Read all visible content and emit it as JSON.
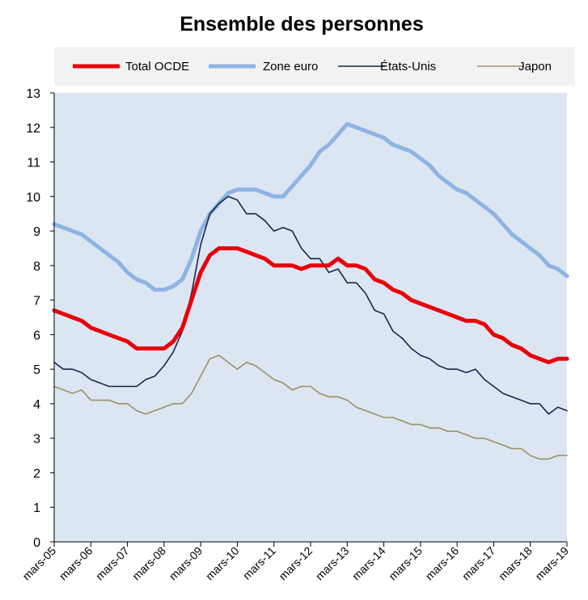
{
  "chart_data": {
    "type": "line",
    "title": "Ensemble des personnes",
    "xlabel": "",
    "ylabel": "",
    "ylim": [
      0,
      13
    ],
    "yticks": [
      "0",
      "1",
      "2",
      "3",
      "4",
      "5",
      "6",
      "7",
      "8",
      "9",
      "10",
      "11",
      "12",
      "13"
    ],
    "x_tick_labels": [
      "mars-05",
      "mars-06",
      "mars-07",
      "mars-08",
      "mars-09",
      "mars-10",
      "mars-11",
      "mars-12",
      "mars-13",
      "mars-14",
      "mars-15",
      "mars-16",
      "mars-17",
      "mars-18",
      "mars-19"
    ],
    "x_start": "2005-03",
    "x_end": "2019-03",
    "grid": false,
    "legend_position": "top",
    "colors": {
      "plot_background": "#dce6f2",
      "legend_background": "#f2f2f2",
      "axis": "#000000"
    },
    "series": [
      {
        "name": "Total OCDE",
        "color": "#e8000b",
        "width": 5,
        "points": [
          [
            "2005-03",
            6.7
          ],
          [
            "2005-06",
            6.6
          ],
          [
            "2005-09",
            6.5
          ],
          [
            "2005-12",
            6.4
          ],
          [
            "2006-03",
            6.2
          ],
          [
            "2006-06",
            6.1
          ],
          [
            "2006-09",
            6.0
          ],
          [
            "2006-12",
            5.9
          ],
          [
            "2007-03",
            5.8
          ],
          [
            "2007-06",
            5.6
          ],
          [
            "2007-09",
            5.6
          ],
          [
            "2007-12",
            5.6
          ],
          [
            "2008-03",
            5.6
          ],
          [
            "2008-06",
            5.8
          ],
          [
            "2008-09",
            6.2
          ],
          [
            "2008-12",
            7.0
          ],
          [
            "2009-03",
            7.8
          ],
          [
            "2009-06",
            8.3
          ],
          [
            "2009-09",
            8.5
          ],
          [
            "2009-12",
            8.5
          ],
          [
            "2010-03",
            8.5
          ],
          [
            "2010-06",
            8.4
          ],
          [
            "2010-09",
            8.3
          ],
          [
            "2010-12",
            8.2
          ],
          [
            "2011-03",
            8.0
          ],
          [
            "2011-06",
            8.0
          ],
          [
            "2011-09",
            8.0
          ],
          [
            "2011-12",
            7.9
          ],
          [
            "2012-03",
            8.0
          ],
          [
            "2012-06",
            8.0
          ],
          [
            "2012-09",
            8.0
          ],
          [
            "2012-12",
            8.2
          ],
          [
            "2013-03",
            8.0
          ],
          [
            "2013-06",
            8.0
          ],
          [
            "2013-09",
            7.9
          ],
          [
            "2013-12",
            7.6
          ],
          [
            "2014-03",
            7.5
          ],
          [
            "2014-06",
            7.3
          ],
          [
            "2014-09",
            7.2
          ],
          [
            "2014-12",
            7.0
          ],
          [
            "2015-03",
            6.9
          ],
          [
            "2015-06",
            6.8
          ],
          [
            "2015-09",
            6.7
          ],
          [
            "2015-12",
            6.6
          ],
          [
            "2016-03",
            6.5
          ],
          [
            "2016-06",
            6.4
          ],
          [
            "2016-09",
            6.4
          ],
          [
            "2016-12",
            6.3
          ],
          [
            "2017-03",
            6.0
          ],
          [
            "2017-06",
            5.9
          ],
          [
            "2017-09",
            5.7
          ],
          [
            "2017-12",
            5.6
          ],
          [
            "2018-03",
            5.4
          ],
          [
            "2018-06",
            5.3
          ],
          [
            "2018-09",
            5.2
          ],
          [
            "2018-12",
            5.3
          ],
          [
            "2019-03",
            5.3
          ]
        ]
      },
      {
        "name": "Zone euro",
        "color": "#8eb4e3",
        "width": 5,
        "points": [
          [
            "2005-03",
            9.2
          ],
          [
            "2005-06",
            9.1
          ],
          [
            "2005-09",
            9.0
          ],
          [
            "2005-12",
            8.9
          ],
          [
            "2006-03",
            8.7
          ],
          [
            "2006-06",
            8.5
          ],
          [
            "2006-09",
            8.3
          ],
          [
            "2006-12",
            8.1
          ],
          [
            "2007-03",
            7.8
          ],
          [
            "2007-06",
            7.6
          ],
          [
            "2007-09",
            7.5
          ],
          [
            "2007-12",
            7.3
          ],
          [
            "2008-03",
            7.3
          ],
          [
            "2008-06",
            7.4
          ],
          [
            "2008-09",
            7.6
          ],
          [
            "2008-12",
            8.2
          ],
          [
            "2009-03",
            9.0
          ],
          [
            "2009-06",
            9.5
          ],
          [
            "2009-09",
            9.8
          ],
          [
            "2009-12",
            10.1
          ],
          [
            "2010-03",
            10.2
          ],
          [
            "2010-06",
            10.2
          ],
          [
            "2010-09",
            10.2
          ],
          [
            "2010-12",
            10.1
          ],
          [
            "2011-03",
            10.0
          ],
          [
            "2011-06",
            10.0
          ],
          [
            "2011-09",
            10.3
          ],
          [
            "2011-12",
            10.6
          ],
          [
            "2012-03",
            10.9
          ],
          [
            "2012-06",
            11.3
          ],
          [
            "2012-09",
            11.5
          ],
          [
            "2012-12",
            11.8
          ],
          [
            "2013-03",
            12.1
          ],
          [
            "2013-06",
            12.0
          ],
          [
            "2013-09",
            11.9
          ],
          [
            "2013-12",
            11.8
          ],
          [
            "2014-03",
            11.7
          ],
          [
            "2014-06",
            11.5
          ],
          [
            "2014-09",
            11.4
          ],
          [
            "2014-12",
            11.3
          ],
          [
            "2015-03",
            11.1
          ],
          [
            "2015-06",
            10.9
          ],
          [
            "2015-09",
            10.6
          ],
          [
            "2015-12",
            10.4
          ],
          [
            "2016-03",
            10.2
          ],
          [
            "2016-06",
            10.1
          ],
          [
            "2016-09",
            9.9
          ],
          [
            "2016-12",
            9.7
          ],
          [
            "2017-03",
            9.5
          ],
          [
            "2017-06",
            9.2
          ],
          [
            "2017-09",
            8.9
          ],
          [
            "2017-12",
            8.7
          ],
          [
            "2018-03",
            8.5
          ],
          [
            "2018-06",
            8.3
          ],
          [
            "2018-09",
            8.0
          ],
          [
            "2018-12",
            7.9
          ],
          [
            "2019-03",
            7.7
          ]
        ]
      },
      {
        "name": "États-Unis",
        "color": "#14284b",
        "width": 1.6,
        "points": [
          [
            "2005-03",
            5.2
          ],
          [
            "2005-06",
            5.0
          ],
          [
            "2005-09",
            5.0
          ],
          [
            "2005-12",
            4.9
          ],
          [
            "2006-03",
            4.7
          ],
          [
            "2006-06",
            4.6
          ],
          [
            "2006-09",
            4.5
          ],
          [
            "2006-12",
            4.5
          ],
          [
            "2007-03",
            4.5
          ],
          [
            "2007-06",
            4.5
          ],
          [
            "2007-09",
            4.7
          ],
          [
            "2007-12",
            4.8
          ],
          [
            "2008-03",
            5.1
          ],
          [
            "2008-06",
            5.5
          ],
          [
            "2008-09",
            6.1
          ],
          [
            "2008-12",
            7.2
          ],
          [
            "2009-03",
            8.6
          ],
          [
            "2009-06",
            9.5
          ],
          [
            "2009-09",
            9.8
          ],
          [
            "2009-12",
            10.0
          ],
          [
            "2010-03",
            9.9
          ],
          [
            "2010-06",
            9.5
          ],
          [
            "2010-09",
            9.5
          ],
          [
            "2010-12",
            9.3
          ],
          [
            "2011-03",
            9.0
          ],
          [
            "2011-06",
            9.1
          ],
          [
            "2011-09",
            9.0
          ],
          [
            "2011-12",
            8.5
          ],
          [
            "2012-03",
            8.2
          ],
          [
            "2012-06",
            8.2
          ],
          [
            "2012-09",
            7.8
          ],
          [
            "2012-12",
            7.9
          ],
          [
            "2013-03",
            7.5
          ],
          [
            "2013-06",
            7.5
          ],
          [
            "2013-09",
            7.2
          ],
          [
            "2013-12",
            6.7
          ],
          [
            "2014-03",
            6.6
          ],
          [
            "2014-06",
            6.1
          ],
          [
            "2014-09",
            5.9
          ],
          [
            "2014-12",
            5.6
          ],
          [
            "2015-03",
            5.4
          ],
          [
            "2015-06",
            5.3
          ],
          [
            "2015-09",
            5.1
          ],
          [
            "2015-12",
            5.0
          ],
          [
            "2016-03",
            5.0
          ],
          [
            "2016-06",
            4.9
          ],
          [
            "2016-09",
            5.0
          ],
          [
            "2016-12",
            4.7
          ],
          [
            "2017-03",
            4.5
          ],
          [
            "2017-06",
            4.3
          ],
          [
            "2017-09",
            4.2
          ],
          [
            "2017-12",
            4.1
          ],
          [
            "2018-03",
            4.0
          ],
          [
            "2018-06",
            4.0
          ],
          [
            "2018-09",
            3.7
          ],
          [
            "2018-12",
            3.9
          ],
          [
            "2019-03",
            3.8
          ]
        ]
      },
      {
        "name": "Japon",
        "color": "#9c8f64",
        "width": 1.6,
        "points": [
          [
            "2005-03",
            4.5
          ],
          [
            "2005-06",
            4.4
          ],
          [
            "2005-09",
            4.3
          ],
          [
            "2005-12",
            4.4
          ],
          [
            "2006-03",
            4.1
          ],
          [
            "2006-06",
            4.1
          ],
          [
            "2006-09",
            4.1
          ],
          [
            "2006-12",
            4.0
          ],
          [
            "2007-03",
            4.0
          ],
          [
            "2007-06",
            3.8
          ],
          [
            "2007-09",
            3.7
          ],
          [
            "2007-12",
            3.8
          ],
          [
            "2008-03",
            3.9
          ],
          [
            "2008-06",
            4.0
          ],
          [
            "2008-09",
            4.0
          ],
          [
            "2008-12",
            4.3
          ],
          [
            "2009-03",
            4.8
          ],
          [
            "2009-06",
            5.3
          ],
          [
            "2009-09",
            5.4
          ],
          [
            "2009-12",
            5.2
          ],
          [
            "2010-03",
            5.0
          ],
          [
            "2010-06",
            5.2
          ],
          [
            "2010-09",
            5.1
          ],
          [
            "2010-12",
            4.9
          ],
          [
            "2011-03",
            4.7
          ],
          [
            "2011-06",
            4.6
          ],
          [
            "2011-09",
            4.4
          ],
          [
            "2011-12",
            4.5
          ],
          [
            "2012-03",
            4.5
          ],
          [
            "2012-06",
            4.3
          ],
          [
            "2012-09",
            4.2
          ],
          [
            "2012-12",
            4.2
          ],
          [
            "2013-03",
            4.1
          ],
          [
            "2013-06",
            3.9
          ],
          [
            "2013-09",
            3.8
          ],
          [
            "2013-12",
            3.7
          ],
          [
            "2014-03",
            3.6
          ],
          [
            "2014-06",
            3.6
          ],
          [
            "2014-09",
            3.5
          ],
          [
            "2014-12",
            3.4
          ],
          [
            "2015-03",
            3.4
          ],
          [
            "2015-06",
            3.3
          ],
          [
            "2015-09",
            3.3
          ],
          [
            "2015-12",
            3.2
          ],
          [
            "2016-03",
            3.2
          ],
          [
            "2016-06",
            3.1
          ],
          [
            "2016-09",
            3.0
          ],
          [
            "2016-12",
            3.0
          ],
          [
            "2017-03",
            2.9
          ],
          [
            "2017-06",
            2.8
          ],
          [
            "2017-09",
            2.7
          ],
          [
            "2017-12",
            2.7
          ],
          [
            "2018-03",
            2.5
          ],
          [
            "2018-06",
            2.4
          ],
          [
            "2018-09",
            2.4
          ],
          [
            "2018-12",
            2.5
          ],
          [
            "2019-03",
            2.5
          ]
        ]
      }
    ]
  }
}
